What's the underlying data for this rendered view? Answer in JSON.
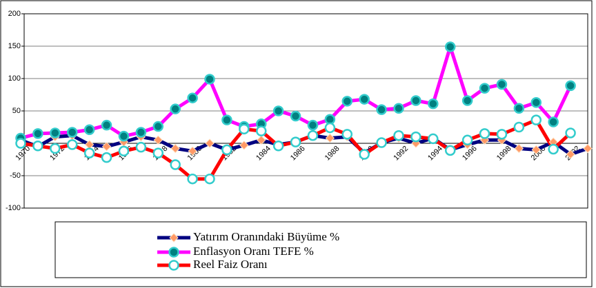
{
  "chart_data": {
    "type": "line",
    "categories": [
      "1970",
      null,
      "1972",
      null,
      "1974",
      null,
      "1976",
      null,
      "1978",
      null,
      "1980",
      null,
      "1982",
      null,
      "1984",
      null,
      "1986",
      null,
      "1988",
      null,
      "1990",
      null,
      "1992",
      null,
      "1994",
      null,
      "1996",
      null,
      "1998",
      null,
      "2000",
      null,
      "2002",
      null
    ],
    "series": [
      {
        "name": "Yatırım Oranındaki Büyüme %",
        "color": "#000080",
        "marker": "diamond",
        "marker_color": "#ff9966",
        "values": [
          5,
          -5,
          10,
          12,
          -2,
          -5,
          2,
          10,
          5,
          -8,
          -12,
          0,
          -10,
          -3,
          5,
          -2,
          2,
          12,
          8,
          10,
          -15,
          1,
          8,
          0,
          8,
          -10,
          -2,
          5,
          5,
          -8,
          -10,
          2,
          -17,
          -8
        ]
      },
      {
        "name": "Enflasyon Oranı TEFE %",
        "color": "#ff00ff",
        "marker": "circle",
        "marker_color": "#008080",
        "values": [
          8,
          15,
          16,
          17,
          21,
          28,
          11,
          17,
          26,
          53,
          70,
          99,
          36,
          26,
          30,
          50,
          42,
          28,
          37,
          65,
          68,
          52,
          54,
          66,
          61,
          149,
          66,
          85,
          91,
          54,
          63,
          33,
          89,
          null
        ]
      },
      {
        "name": "Reel Faiz Oranı",
        "color": "#ff0000",
        "marker": "circle",
        "marker_color": "#ffffff",
        "values": [
          0,
          -4,
          -8,
          -2,
          -15,
          -22,
          -12,
          -6,
          -15,
          -33,
          -55,
          -55,
          -10,
          22,
          19,
          -4,
          2,
          12,
          24,
          14,
          -17,
          1,
          12,
          10,
          7,
          -11,
          5,
          15,
          14,
          25,
          36,
          -9,
          16,
          null
        ]
      }
    ],
    "ylim": [
      -100,
      200
    ],
    "yticks": [
      -100,
      -50,
      0,
      50,
      100,
      150,
      200
    ],
    "grid": true
  }
}
